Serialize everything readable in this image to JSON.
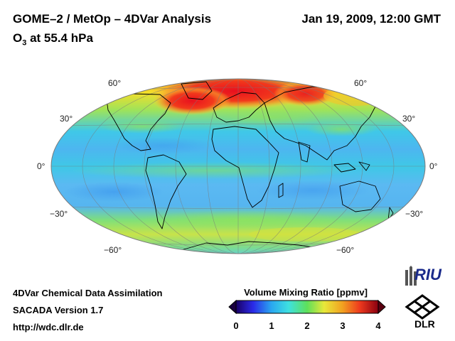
{
  "header": {
    "title": "GOME–2 / MetOp – 4DVar Analysis",
    "species": "O",
    "species_subscript": "3",
    "level_text": " at 55.4 hPa",
    "datetime": "Jan 19, 2009, 12:00 GMT"
  },
  "map": {
    "projection": "Mollweide",
    "lat_labels_left": [
      "60°",
      "30°",
      "0°",
      "−30°",
      "−60°"
    ],
    "lat_labels_right": [
      "60°",
      "30°",
      "0°",
      "−30°",
      "−60°"
    ]
  },
  "footer": {
    "line1": "4DVar Chemical Data Assimilation",
    "line2": "SACADA Version 1.7",
    "url": "http://wdc.dlr.de"
  },
  "colorbar": {
    "title": "Volume Mixing Ratio [ppmv]",
    "ticks": [
      "0",
      "1",
      "2",
      "3",
      "4"
    ],
    "min": 0,
    "max": 4
  },
  "logos": {
    "riu": "RIU",
    "dlr": "DLR"
  },
  "colors": {
    "ocean_base": "#4fb4f2",
    "high": "#e8281e",
    "mid": "#7de07a"
  }
}
